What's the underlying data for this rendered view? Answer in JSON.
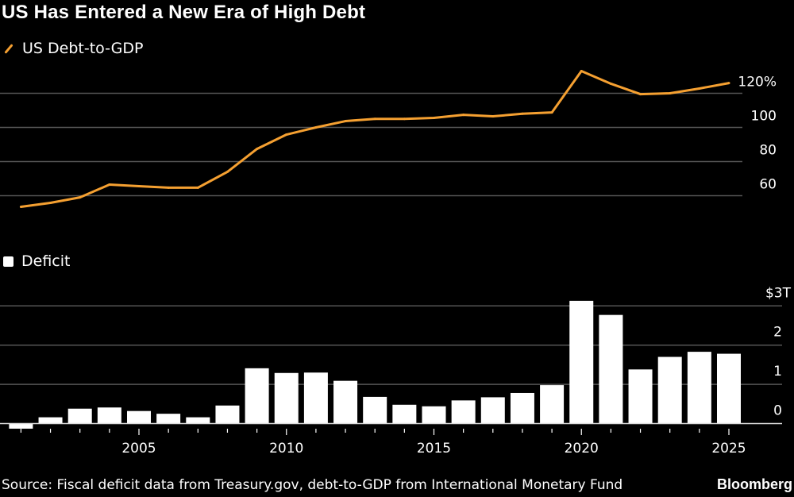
{
  "title": "US Has Entered a New Era of High Debt",
  "source": "Source: Fiscal deficit data from Treasury.gov, debt-to-GDP from International Monetary Fund",
  "brand": "Bloomberg",
  "colors": {
    "line": "#f5a031",
    "bars": "#ffffff",
    "background": "#000000",
    "grid": "#555555"
  },
  "chart_data": [
    {
      "type": "line",
      "legend": "US Debt-to-GDP",
      "x": [
        2001,
        2002,
        2003,
        2004,
        2005,
        2006,
        2007,
        2008,
        2009,
        2010,
        2011,
        2012,
        2013,
        2014,
        2015,
        2016,
        2017,
        2018,
        2019,
        2020,
        2021,
        2022,
        2023,
        2024,
        2025
      ],
      "series": [
        {
          "name": "US Debt-to-GDP",
          "values": [
            53.5,
            55.8,
            59,
            66.5,
            65.6,
            64.7,
            64.7,
            74,
            87.4,
            95.8,
            100,
            103.7,
            105,
            105,
            105.6,
            107.4,
            106.5,
            108,
            108.8,
            133,
            125.6,
            119.5,
            120,
            122.8,
            126
          ]
        }
      ],
      "yticks": [
        {
          "v": 60,
          "label": "60"
        },
        {
          "v": 80,
          "label": "80"
        },
        {
          "v": 100,
          "label": "100"
        },
        {
          "v": 120,
          "label": "120%"
        }
      ],
      "ylim": [
        45,
        135
      ],
      "grid": true
    },
    {
      "type": "bar",
      "legend": "Deficit",
      "x": [
        2001,
        2002,
        2003,
        2004,
        2005,
        2006,
        2007,
        2008,
        2009,
        2010,
        2011,
        2012,
        2013,
        2014,
        2015,
        2016,
        2017,
        2018,
        2019,
        2020,
        2021,
        2022,
        2023,
        2024,
        2025
      ],
      "series": [
        {
          "name": "Deficit",
          "values": [
            -0.13,
            0.16,
            0.38,
            0.41,
            0.32,
            0.25,
            0.16,
            0.46,
            1.41,
            1.29,
            1.3,
            1.09,
            0.68,
            0.48,
            0.44,
            0.59,
            0.67,
            0.78,
            0.98,
            3.13,
            2.77,
            1.38,
            1.7,
            1.83,
            1.78
          ]
        }
      ],
      "yticks": [
        {
          "v": 0,
          "label": "0"
        },
        {
          "v": 1,
          "label": "1"
        },
        {
          "v": 2,
          "label": "2"
        },
        {
          "v": 3,
          "label": "$3T"
        }
      ],
      "xticks": [
        {
          "v": 2005,
          "label": "2005"
        },
        {
          "v": 2010,
          "label": "2010"
        },
        {
          "v": 2015,
          "label": "2015"
        },
        {
          "v": 2020,
          "label": "2020"
        },
        {
          "v": 2025,
          "label": "2025"
        }
      ],
      "ylim": [
        -0.2,
        3.3
      ],
      "grid": true
    }
  ]
}
